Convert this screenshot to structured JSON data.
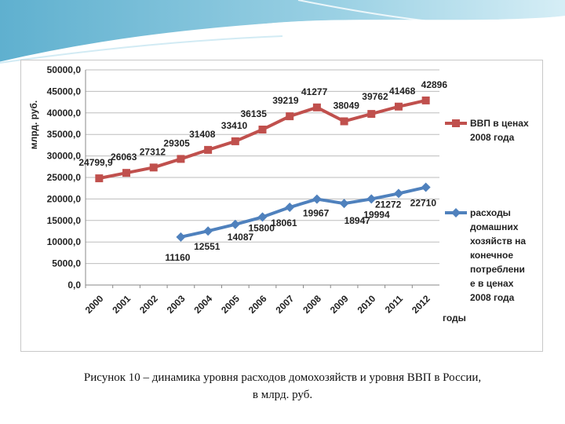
{
  "caption": {
    "line1": "Рисунок 10 – динамика уровня расходов домохозяйств и уровня ВВП в России,",
    "line2": "в млрд. руб."
  },
  "chart_data": {
    "type": "line",
    "ylabel": "млрд. руб.",
    "xlabel": "годы",
    "ylim": [
      0,
      50000
    ],
    "yticks": [
      0,
      5000,
      10000,
      15000,
      20000,
      25000,
      30000,
      35000,
      40000,
      45000,
      50000
    ],
    "ytick_labels": [
      "0,0",
      "5000,0",
      "10000,0",
      "15000,0",
      "20000,0",
      "25000,0",
      "30000,0",
      "35000,0",
      "40000,0",
      "45000,0",
      "50000,0"
    ],
    "categories": [
      "2000",
      "2001",
      "2002",
      "2003",
      "2004",
      "2005",
      "2006",
      "2007",
      "2008",
      "2009",
      "2010",
      "2011",
      "2012"
    ],
    "grid": true,
    "legend_position": "right",
    "series": [
      {
        "name": "ВВП в ценах 2008 года",
        "legend_lines": [
          "ВВП в ценах",
          "2008 года"
        ],
        "color": "#c0504d",
        "marker": "square",
        "values": [
          24799.9,
          26063,
          27312,
          29305,
          31408,
          33410,
          36135,
          39219,
          41277,
          38049,
          39762,
          41468,
          42896
        ],
        "labels": [
          "24799,9",
          "26063",
          "27312",
          "29305",
          "31408",
          "33410",
          "36135",
          "39219",
          "41277",
          "38049",
          "39762",
          "41468",
          "42896"
        ]
      },
      {
        "name": "расходы домашних хозяйств на конечное потребление в ценах 2008 года",
        "legend_lines": [
          "расходы",
          "домашних",
          "хозяйств на",
          "конечное",
          "потреблени",
          "е в ценах",
          "2008 года"
        ],
        "color": "#4f81bd",
        "marker": "diamond",
        "values": [
          null,
          null,
          null,
          11160,
          12551,
          14087,
          15800,
          18061,
          19967,
          18947,
          19994,
          21272,
          22710
        ],
        "labels": [
          null,
          null,
          null,
          "11160",
          "12551",
          "14087",
          "15800",
          "18061",
          "19967",
          "18947",
          "19994",
          "21272",
          "22710"
        ]
      }
    ]
  }
}
